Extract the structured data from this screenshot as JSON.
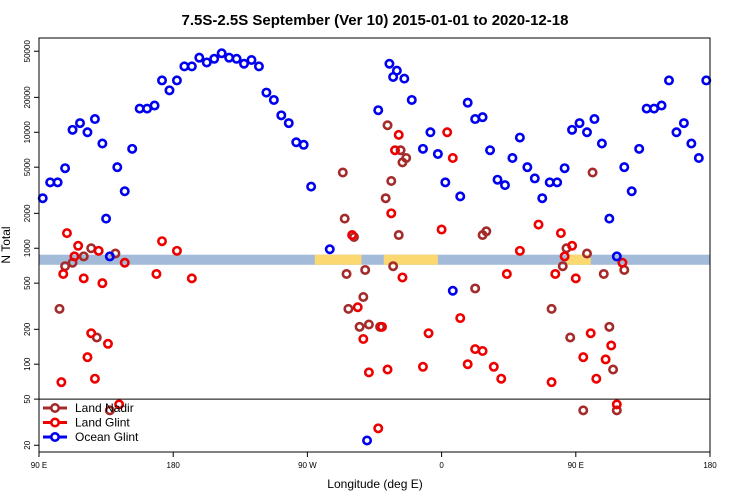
{
  "chart_data": {
    "type": "scatter",
    "title": "7.5S-2.5S September (Ver 10)   2015-01-01 to 2020-12-18",
    "xlabel": "Longitude (deg E)",
    "ylabel": "N Total",
    "yscale": "log",
    "xlim": [
      90,
      450
    ],
    "ylim": [
      17.5,
      65000
    ],
    "x_ticks": [
      {
        "value": 90,
        "label": "90 E"
      },
      {
        "value": 162,
        "label": "180"
      },
      {
        "value": 234,
        "label": "90 W"
      },
      {
        "value": 306,
        "label": "0"
      },
      {
        "value": 378,
        "label": "90 E"
      },
      {
        "value": 450,
        "label": "180"
      }
    ],
    "y_ticks": [
      {
        "value": 20,
        "label": "20"
      },
      {
        "value": 50,
        "label": "50"
      },
      {
        "value": 100,
        "label": "100"
      },
      {
        "value": 200,
        "label": "200"
      },
      {
        "value": 500,
        "label": "500"
      },
      {
        "value": 1000,
        "label": "1000"
      },
      {
        "value": 2000,
        "label": "2000"
      },
      {
        "value": 5000,
        "label": "5000"
      },
      {
        "value": 10000,
        "label": "10000"
      },
      {
        "value": 20000,
        "label": "20000"
      },
      {
        "value": 50000,
        "label": "50000"
      }
    ],
    "separator_y": 50,
    "land_band_y": [
      720,
      880
    ],
    "colors": {
      "ocean_band": "#a3bbd9",
      "land_band": "#fbd870"
    },
    "land_segments": [
      [
        238,
        263
      ],
      [
        275,
        304
      ],
      [
        373,
        386
      ]
    ],
    "legend": [
      "Land Nadir",
      "Land Glint",
      "Ocean Glint"
    ],
    "series": [
      {
        "name": "Land Nadir",
        "color": "#a52a2a",
        "x": [
          101,
          104,
          108,
          114,
          118,
          121,
          128,
          131,
          253,
          254,
          255,
          256,
          259,
          262,
          264,
          265,
          267,
          273,
          276,
          277,
          279,
          280,
          283,
          284,
          285,
          287,
          324,
          328,
          330,
          365,
          371,
          373,
          375,
          382,
          384,
          387,
          393,
          396,
          398,
          400,
          404
        ],
        "y": [
          300,
          700,
          750,
          850,
          1000,
          170,
          40,
          900,
          4500,
          1800,
          600,
          300,
          1250,
          210,
          380,
          650,
          220,
          210,
          2700,
          11500,
          3800,
          700,
          1300,
          7000,
          5500,
          6000,
          450,
          1300,
          1400,
          300,
          700,
          1000,
          170,
          40,
          900,
          4500,
          600,
          210,
          90,
          40,
          650
        ]
      },
      {
        "name": "Land Glint",
        "color": "#ee0000",
        "x": [
          102,
          103,
          105,
          109,
          111,
          114,
          116,
          118,
          120,
          122,
          124,
          127,
          133,
          136,
          153,
          156,
          164,
          172,
          258,
          261,
          264,
          267,
          272,
          274,
          277,
          279,
          281,
          283,
          285,
          296,
          299,
          306,
          309,
          312,
          316,
          320,
          324,
          328,
          334,
          338,
          341,
          348,
          358,
          365,
          367,
          370,
          372,
          376,
          378,
          382,
          386,
          389,
          394,
          397,
          400,
          403
        ],
        "y": [
          70,
          600,
          1350,
          850,
          1050,
          550,
          115,
          185,
          75,
          950,
          500,
          150,
          45,
          750,
          600,
          1150,
          950,
          550,
          1300,
          310,
          165,
          85,
          28,
          210,
          90,
          2000,
          7000,
          9500,
          560,
          95,
          185,
          1450,
          10000,
          6000,
          250,
          100,
          135,
          130,
          95,
          75,
          600,
          950,
          1600,
          70,
          600,
          1350,
          850,
          1050,
          550,
          115,
          185,
          75,
          110,
          145,
          45,
          750
        ]
      },
      {
        "name": "Ocean Glint",
        "color": "#0000ee",
        "x": [
          92,
          96,
          100,
          104,
          108,
          112,
          116,
          120,
          124,
          126,
          128,
          132,
          136,
          140,
          144,
          148,
          152,
          156,
          160,
          164,
          168,
          172,
          176,
          180,
          184,
          188,
          192,
          196,
          200,
          204,
          208,
          212,
          216,
          220,
          224,
          228,
          232,
          236,
          246,
          266,
          272,
          278,
          280,
          282,
          286,
          290,
          296,
          300,
          304,
          308,
          312,
          316,
          320,
          324,
          328,
          332,
          336,
          340,
          344,
          348,
          352,
          356,
          360,
          364,
          368,
          372,
          376,
          380,
          384,
          388,
          392,
          396,
          400,
          404,
          408,
          412,
          416,
          420,
          424,
          428,
          432,
          436,
          440,
          444,
          448
        ],
        "y": [
          2700,
          3700,
          3700,
          4900,
          10500,
          12000,
          10000,
          13000,
          8000,
          1800,
          850,
          5000,
          3100,
          7200,
          16000,
          16000,
          17000,
          28000,
          23000,
          28000,
          37000,
          37000,
          44000,
          40000,
          43000,
          48000,
          44000,
          43000,
          39000,
          42000,
          37000,
          22000,
          19000,
          14000,
          12000,
          8200,
          7800,
          3400,
          980,
          22,
          15500,
          39000,
          30000,
          34000,
          29000,
          19000,
          7200,
          10000,
          6500,
          3700,
          430,
          2800,
          18000,
          13000,
          13500,
          7000,
          3900,
          3500,
          6000,
          9000,
          5000,
          4000,
          2700,
          3700,
          3700,
          4900,
          10500,
          12000,
          10000,
          13000,
          8000,
          1800,
          850,
          5000,
          3100,
          7200,
          16000,
          16000,
          17000,
          28000,
          10000,
          12000,
          8000,
          6000,
          28000
        ]
      }
    ]
  }
}
